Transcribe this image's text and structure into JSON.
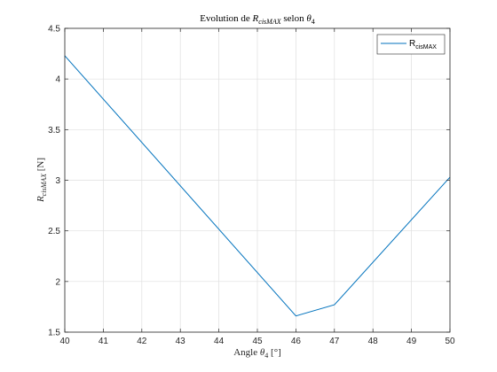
{
  "chart_data": {
    "type": "line",
    "title": {
      "prefix": "Evolution de ",
      "var": "R",
      "var_sub": "cisMAX",
      "mid": " selon ",
      "theta": "θ",
      "theta_sub": "4"
    },
    "xlabel": {
      "prefix": "Angle ",
      "theta": "θ",
      "theta_sub": "4",
      "unit": " [°]"
    },
    "ylabel": {
      "var": "R",
      "var_sub": "cisMAX",
      "unit": " [N]"
    },
    "xlim": [
      40,
      50
    ],
    "ylim": [
      1.5,
      4.5
    ],
    "xticks": [
      40,
      41,
      42,
      43,
      44,
      45,
      46,
      47,
      48,
      49,
      50
    ],
    "yticks": [
      1.5,
      2,
      2.5,
      3,
      3.5,
      4,
      4.5
    ],
    "ytick_labels": [
      "1.5",
      "2",
      "2.5",
      "3",
      "3.5",
      "4",
      "4.5"
    ],
    "grid": true,
    "legend_placement": "top-right",
    "series": [
      {
        "name_main": "R",
        "name_sub": "cisMAX",
        "color": "#0072BD",
        "x": [
          40,
          46,
          47,
          50
        ],
        "y": [
          4.23,
          1.66,
          1.77,
          3.03
        ]
      }
    ]
  }
}
